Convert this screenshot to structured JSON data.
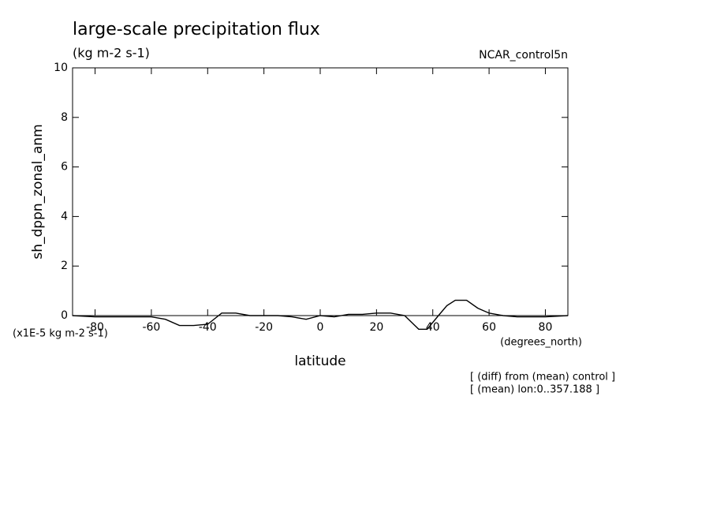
{
  "chart_data": {
    "type": "line",
    "title": "large-scale precipitation flux",
    "subtitle": "(kg m-2 s-1)",
    "dataset": "NCAR_control5n",
    "y_label": "sh_dppn_zonal_anm",
    "y_units": "(x1E-5 kg m-2 s-1)",
    "x_label": "latitude",
    "x_units": "(degrees_north)",
    "annotations": [
      "[ (diff) from (mean) control ]",
      "[ (mean) lon:0..357.188 ]"
    ],
    "xlim": [
      -88,
      88
    ],
    "xticks": [
      -80,
      -60,
      -40,
      -20,
      0,
      20,
      40,
      60,
      80
    ],
    "ylim": [
      0,
      10
    ],
    "yticks": [
      0,
      2,
      4,
      6,
      8,
      10
    ],
    "series": [
      {
        "color": "#000000",
        "x": [
          -88,
          -80,
          -70,
          -60,
          -55,
          -50,
          -45,
          -40,
          -35,
          -30,
          -25,
          -20,
          -15,
          -10,
          -5,
          0,
          5,
          10,
          15,
          20,
          25,
          30,
          35,
          38,
          42,
          45,
          48,
          52,
          56,
          60,
          65,
          70,
          80,
          88
        ],
        "values": [
          0,
          -0.05,
          -0.05,
          -0.05,
          -0.15,
          -0.4,
          -0.4,
          -0.35,
          0.1,
          0.1,
          0,
          0,
          0,
          -0.05,
          -0.15,
          0,
          -0.05,
          0.05,
          0.05,
          0.1,
          0.1,
          0,
          -0.55,
          -0.55,
          0,
          0.4,
          0.62,
          0.62,
          0.3,
          0.1,
          0,
          -0.05,
          -0.05,
          0
        ]
      }
    ]
  }
}
